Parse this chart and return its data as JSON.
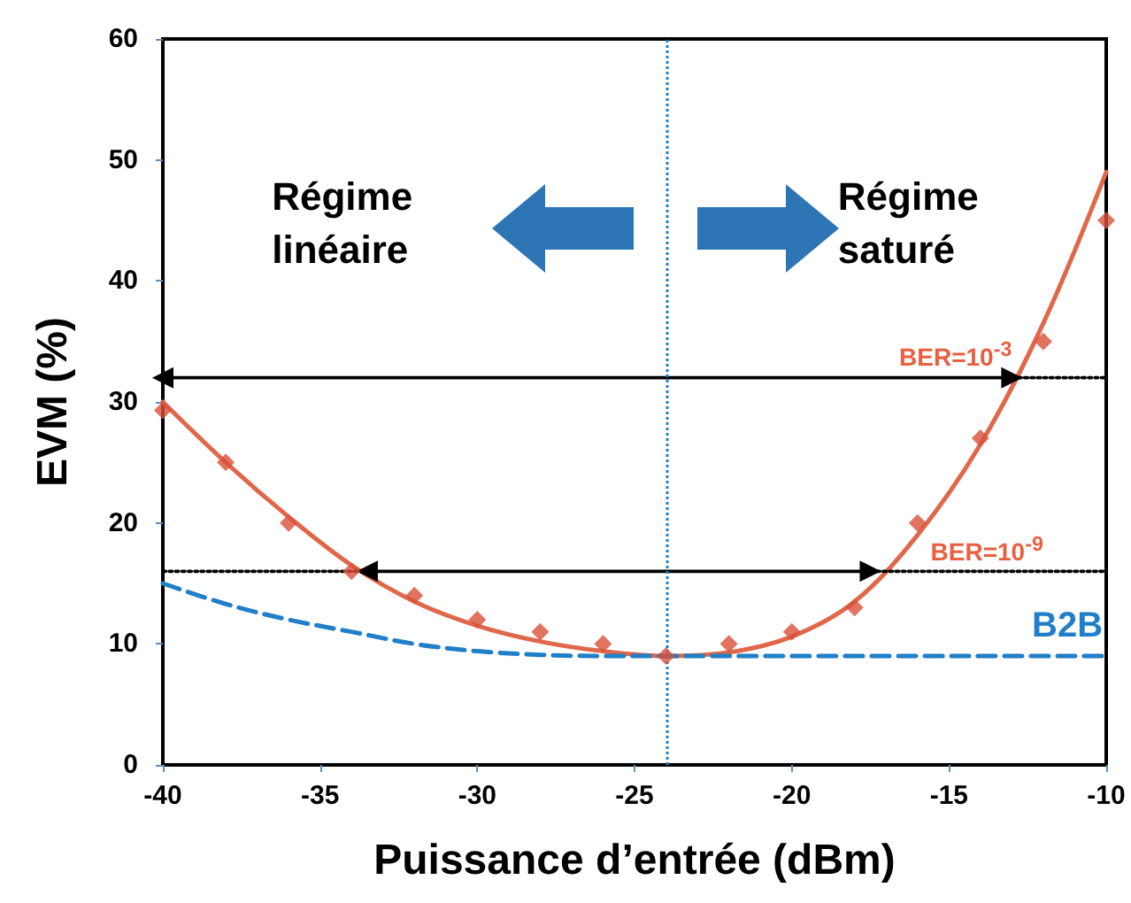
{
  "chart_data": {
    "type": "scatter",
    "xlabel": "Puissance d’entrée (dBm)",
    "ylabel": "EVM (%)",
    "xlim": [
      -40,
      -10
    ],
    "xticks": [
      -40,
      -35,
      -30,
      -25,
      -20,
      -15,
      -10
    ],
    "ylim": [
      0,
      60
    ],
    "yticks": [
      0,
      10,
      20,
      30,
      40,
      50,
      60
    ],
    "grid": false,
    "legend": false,
    "marker": "diamond",
    "series": [
      {
        "color": "#d9503a",
        "x": [
          -40,
          -38,
          -36,
          -34,
          -32,
          -30,
          -28,
          -26,
          -24,
          -22,
          -20,
          -18,
          -16,
          -14,
          -12,
          -10
        ],
        "values": [
          29.3,
          25,
          20,
          16,
          14,
          12,
          11,
          10,
          9,
          10,
          11,
          13,
          20,
          27,
          35,
          45
        ]
      },
      {
        "type": "line",
        "color": "#e0674a",
        "line_style": "solid",
        "marker": "none",
        "x": [
          -40,
          -38,
          -36,
          -34,
          -32,
          -30,
          -28,
          -26,
          -24,
          -22,
          -20,
          -18,
          -16,
          -14,
          -12,
          -10
        ],
        "values": [
          30,
          25,
          20.5,
          16.5,
          13.5,
          11.5,
          10.2,
          9.4,
          9,
          9.3,
          10.6,
          13.5,
          19,
          26.5,
          36.5,
          49
        ]
      },
      {
        "type": "line",
        "color": "#000000",
        "line_style": "solid",
        "marker": "triangle",
        "x": [
          -40,
          -13
        ],
        "values": [
          32,
          32
        ]
      },
      {
        "type": "line",
        "color": "#000000",
        "line_style": "dotted",
        "marker": "none",
        "x": [
          -13,
          -10
        ],
        "values": [
          32,
          32
        ]
      },
      {
        "type": "line",
        "color": "#000000",
        "line_style": "solid",
        "marker": "triangle",
        "x": [
          -33.5,
          -17.5
        ],
        "values": [
          16,
          16
        ]
      },
      {
        "type": "line",
        "color": "#000000",
        "line_style": "dotted",
        "marker": "none",
        "x": [
          -40,
          -33.5
        ],
        "values": [
          16,
          16
        ]
      },
      {
        "type": "line",
        "color": "#000000",
        "line_style": "dotted",
        "marker": "none",
        "x": [
          -17.5,
          -10
        ],
        "values": [
          16,
          16
        ]
      },
      {
        "type": "line",
        "name": "B2B",
        "color": "#1f7fc8",
        "line_style": "dashed",
        "marker": "none",
        "x": [
          -40,
          -38,
          -36,
          -34,
          -32,
          -30,
          -28,
          -26,
          -10
        ],
        "values": [
          15,
          13.3,
          12,
          11,
          10,
          9.4,
          9.1,
          9,
          9
        ]
      }
    ],
    "ref_lines": [
      {
        "axis": "x",
        "value": -24,
        "color": "#1f7fc8",
        "line_style": "dotted"
      }
    ],
    "annotations": [
      "Régime linéaire",
      "Régime saturé",
      {
        "text": "BER=10$^{-3}$",
        "x": -13,
        "y": 32
      },
      {
        "text": "BER=10$^{-9}$",
        "x": -12,
        "y": 16
      }
    ]
  }
}
